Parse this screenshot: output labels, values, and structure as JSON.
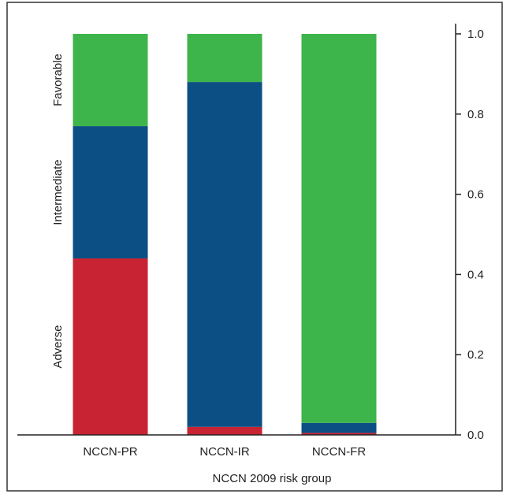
{
  "chart_data": {
    "type": "bar",
    "stacked": true,
    "categories": [
      "NCCN-PR",
      "NCCN-IR",
      "NCCN-FR"
    ],
    "series": [
      {
        "name": "Adverse",
        "values": [
          0.44,
          0.02,
          0.005
        ],
        "color": "#C82333"
      },
      {
        "name": "Intermediate",
        "values": [
          0.33,
          0.86,
          0.025
        ],
        "color": "#0C4F84"
      },
      {
        "name": "Favorable",
        "values": [
          0.23,
          0.12,
          0.97
        ],
        "color": "#3DB54A"
      }
    ],
    "xlabel": "NCCN 2009 risk group",
    "ylabel": "",
    "ylim": [
      0,
      1.0
    ],
    "yticks": [
      "0.0",
      "0.2",
      "0.4",
      "0.6",
      "0.8",
      "1.0"
    ],
    "y_axis_side": "right",
    "series_labels_position": "left-vertical",
    "grid": false
  }
}
